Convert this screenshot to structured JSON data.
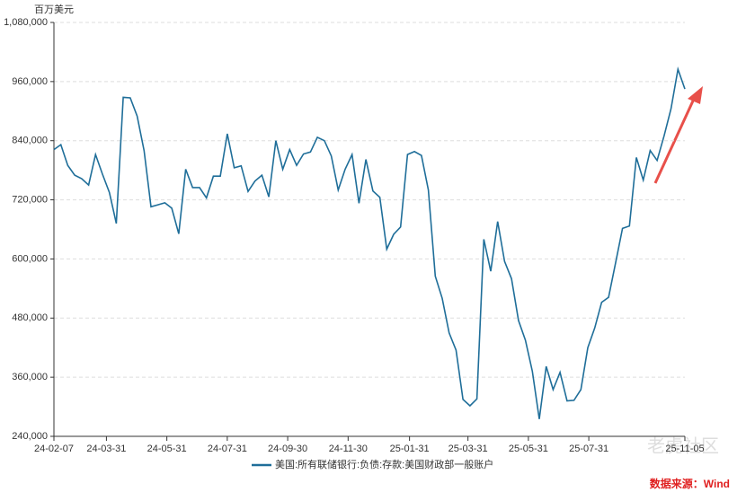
{
  "chart_data": {
    "type": "line",
    "unit_label": "百万美元",
    "source": "数据来源：Wind",
    "watermark": "老虎社区",
    "x": [
      "24-02-07",
      "24-02-14",
      "24-02-21",
      "24-02-28",
      "24-03-06",
      "24-03-13",
      "24-03-20",
      "24-03-27",
      "24-04-03",
      "24-04-10",
      "24-04-17",
      "24-04-24",
      "24-05-01",
      "24-05-08",
      "24-05-15",
      "24-05-22",
      "24-05-29",
      "24-06-05",
      "24-06-12",
      "24-06-19",
      "24-06-26",
      "24-07-03",
      "24-07-10",
      "24-07-17",
      "24-07-24",
      "24-07-31",
      "24-08-07",
      "24-08-14",
      "24-08-21",
      "24-08-28",
      "24-09-04",
      "24-09-11",
      "24-09-18",
      "24-09-25",
      "24-10-02",
      "24-10-09",
      "24-10-16",
      "24-10-23",
      "24-10-30",
      "24-11-06",
      "24-11-13",
      "24-11-20",
      "24-11-27",
      "24-12-04",
      "24-12-11",
      "24-12-18",
      "24-12-25",
      "25-01-01",
      "25-01-08",
      "25-01-15",
      "25-01-22",
      "25-01-29",
      "25-02-05",
      "25-02-12",
      "25-02-19",
      "25-02-26",
      "25-03-05",
      "25-03-12",
      "25-03-19",
      "25-03-26",
      "25-04-02",
      "25-04-09",
      "25-04-16",
      "25-04-23",
      "25-04-30",
      "25-05-07",
      "25-05-14",
      "25-05-21",
      "25-05-28",
      "25-06-04",
      "25-06-11",
      "25-06-18",
      "25-06-25",
      "25-07-02",
      "25-07-09",
      "25-07-16",
      "25-07-23",
      "25-07-30",
      "25-08-06",
      "25-08-13",
      "25-08-20",
      "25-08-27",
      "25-09-03",
      "25-09-10",
      "25-09-17",
      "25-09-24",
      "25-10-01",
      "25-10-08",
      "25-10-15",
      "25-10-22",
      "25-10-29",
      "25-11-05"
    ],
    "series": [
      {
        "name": "美国:所有联储银行:负债:存款:美国财政部一般账户",
        "color": "#1f6e99",
        "values": [
          822000,
          832000,
          790000,
          770000,
          763000,
          750000,
          812000,
          772000,
          735000,
          672000,
          928000,
          927000,
          890000,
          820000,
          706000,
          710000,
          714000,
          703000,
          651000,
          782000,
          745000,
          745000,
          724000,
          768000,
          768000,
          854000,
          785000,
          789000,
          737000,
          758000,
          770000,
          726000,
          840000,
          782000,
          822000,
          790000,
          813000,
          817000,
          847000,
          840000,
          809000,
          740000,
          782000,
          812000,
          713000,
          802000,
          738000,
          725000,
          620000,
          650000,
          665000,
          812000,
          818000,
          810000,
          740000,
          565000,
          520000,
          450000,
          415000,
          315000,
          302000,
          316000,
          640000,
          575000,
          676000,
          595000,
          560000,
          475000,
          435000,
          372000,
          275000,
          382000,
          335000,
          370000,
          312000,
          313000,
          335000,
          420000,
          460000,
          512000,
          522000,
          592000,
          662000,
          667000,
          806000,
          760000,
          820000,
          800000,
          850000,
          905000,
          985000,
          945000
        ]
      }
    ],
    "xlim": [
      "24-02-07",
      "25-11-05"
    ],
    "xticks": [
      "24-02-07",
      "24-03-31",
      "24-05-31",
      "24-07-31",
      "24-09-30",
      "24-11-30",
      "25-01-31",
      "25-03-31",
      "25-05-31",
      "25-07-31",
      "25-11-05"
    ],
    "ylim": [
      240000,
      1080000
    ],
    "yticks": [
      {
        "value": 240000,
        "label": "240,000"
      },
      {
        "value": 360000,
        "label": "360,000"
      },
      {
        "value": 480000,
        "label": "480,000"
      },
      {
        "value": 600000,
        "label": "600,000"
      },
      {
        "value": 720000,
        "label": "720,000"
      },
      {
        "value": 840000,
        "label": "840,000"
      },
      {
        "value": 960000,
        "label": "960,000"
      },
      {
        "value": 1080000,
        "label": "1,080,000"
      }
    ],
    "grid": true
  }
}
